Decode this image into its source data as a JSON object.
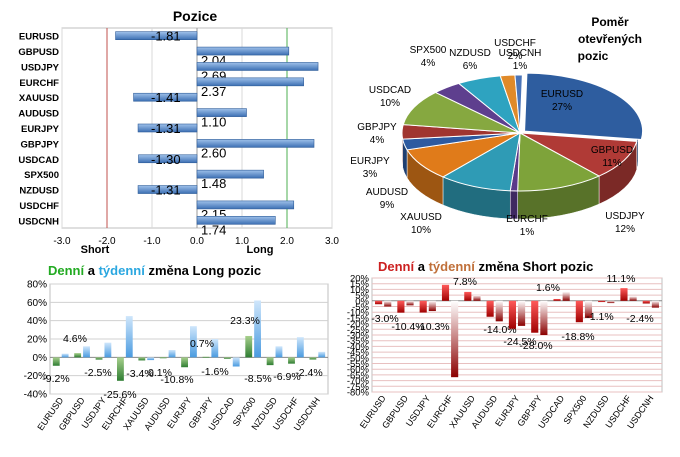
{
  "positions": {
    "title": "Pozice",
    "short_label": "Short",
    "long_label": "Long",
    "xlim": [
      -3,
      3
    ],
    "ticks": [
      "-3.0",
      "-2.0",
      "-1.0",
      "0.0",
      "1.0",
      "2.0",
      "3.0"
    ],
    "tick_values": [
      -3,
      -2,
      -1,
      0,
      1,
      2,
      3
    ]
  },
  "pie": {
    "title_lines": [
      "Poměr",
      "otevřených",
      "pozic"
    ]
  },
  "long_change": {
    "title_parts": [
      "Denní",
      " a ",
      "týdenní",
      " změna Long pozic"
    ],
    "ticks": [
      "80%",
      "60%",
      "40%",
      "20%",
      "0%",
      "-20%",
      "-40%"
    ],
    "tick_values": [
      80,
      60,
      40,
      20,
      0,
      -20,
      -40
    ],
    "label_texts": [
      "-9.2%",
      "4.6%",
      "-2.5%",
      "-25.6%",
      "-3.4%",
      "0.1%",
      "-10.8%",
      "0.7%",
      "-1.6%",
      "23.3%",
      "-8.5%",
      "-6.9%",
      "-2.4%"
    ]
  },
  "short_change": {
    "title_parts": [
      "Denní",
      " a ",
      "týdenní",
      " změna Short pozic"
    ],
    "ticks": [
      "20%",
      "15%",
      "10%",
      "5%",
      "0%",
      "-5%",
      "-10%",
      "-15%",
      "-20%",
      "-25%",
      "-30%",
      "-35%",
      "-40%",
      "-45%",
      "-50%",
      "-55%",
      "-60%",
      "-65%",
      "-70%",
      "-75%",
      "-80%"
    ],
    "tick_values": [
      20,
      15,
      10,
      5,
      0,
      -5,
      -10,
      -15,
      -20,
      -25,
      -30,
      -35,
      -40,
      -45,
      -50,
      -55,
      -60,
      -65,
      -70,
      -75,
      -80
    ],
    "label_texts": [
      "-3.0%",
      "-10.4%",
      "-10.3%",
      "7.8%",
      "-14.0%",
      "-24.5%",
      "-28.0%",
      "1.6%",
      "-18.8%",
      "-1.1%",
      "11.1%",
      "-2.4%"
    ]
  },
  "colors": {
    "positions_bar": "#5b8fd4",
    "short_line": "#c0504d",
    "long_line": "#4caf50",
    "grid": "#c8c8c8",
    "green_title": "#22aa22",
    "blue_title": "#2aa7e0",
    "red_title": "#cc2020",
    "brown_title": "#c0703a",
    "long_daily": "#2e8b2e",
    "long_weekly": "#6fb0f0",
    "short_daily": "#b00000",
    "short_weekly": "#d06060"
  },
  "chart_data": [
    {
      "type": "bar",
      "title": "Pozice",
      "orientation": "horizontal",
      "categories": [
        "EURUSD",
        "GBPUSD",
        "USDJPY",
        "EURCHF",
        "XAUUSD",
        "AUDUSD",
        "EURJPY",
        "GBPJPY",
        "USDCAD",
        "SPX500",
        "NZDUSD",
        "USDCHF",
        "USDCNH"
      ],
      "values": [
        -1.81,
        2.04,
        2.69,
        2.37,
        -1.41,
        1.1,
        -1.31,
        2.6,
        -1.3,
        1.48,
        -1.31,
        2.15,
        1.74
      ],
      "xlim": [
        -3,
        3
      ],
      "xlabel": "",
      "ylabel": ""
    },
    {
      "type": "pie",
      "title": "Poměr otevřených pozic",
      "categories": [
        "EURUSD",
        "GBPUSD",
        "USDJPY",
        "EURCHF",
        "XAUUSD",
        "AUDUSD",
        "EURJPY",
        "GBPJPY",
        "USDCAD",
        "SPX500",
        "NZDUSD",
        "USDCHF",
        "USDCNH"
      ],
      "values": [
        27,
        11,
        12,
        1,
        10,
        9,
        3,
        4,
        10,
        4,
        6,
        2,
        1
      ],
      "colors": [
        "#2e5d9f",
        "#b03a36",
        "#7ea33a",
        "#5a3a8a",
        "#2f9bb5",
        "#e07b1a",
        "#2d5aa0",
        "#a03530",
        "#86a840",
        "#5e3f8e",
        "#2ea3c0",
        "#e08a2a",
        "#4a74b8"
      ]
    },
    {
      "type": "bar",
      "title": "Denní a týdenní změna Long pozic",
      "categories": [
        "EURUSD",
        "GBPUSD",
        "USDJPY",
        "EURCHF",
        "XAUUSD",
        "AUDUSD",
        "EURJPY",
        "GBPJPY",
        "USDCAD",
        "SPX500",
        "NZDUSD",
        "USDCHF",
        "USDCNH"
      ],
      "series": [
        {
          "name": "Denní",
          "values": [
            -9.2,
            4.6,
            -2.5,
            -25.6,
            -3.4,
            0.1,
            -10.8,
            0.7,
            -1.6,
            23.3,
            -8.5,
            -6.9,
            -2.4
          ]
        },
        {
          "name": "Týdenní",
          "values": [
            4,
            12,
            16,
            45,
            -3,
            8,
            34,
            20,
            -10,
            62,
            12,
            22,
            6
          ]
        }
      ],
      "ylim": [
        -40,
        80
      ]
    },
    {
      "type": "bar",
      "title": "Denní a týdenní změna Short pozic",
      "categories": [
        "EURUSD",
        "GBPUSD",
        "USDJPY",
        "EURCHF",
        "XAUUSD",
        "AUDUSD",
        "EURJPY",
        "GBPJPY",
        "USDCAD",
        "SPX500",
        "NZDUSD",
        "USDCHF",
        "USDCNH"
      ],
      "series": [
        {
          "name": "Denní",
          "values": [
            -3.0,
            -10.4,
            -10.3,
            14,
            7.8,
            -14.0,
            -24.5,
            -28.0,
            1.6,
            -18.8,
            -1.1,
            11.1,
            -2.4
          ]
        },
        {
          "name": "Týdenní",
          "values": [
            -5,
            -4,
            -9,
            -67,
            5,
            -18,
            -22,
            -30,
            8,
            -15,
            -2,
            4,
            -6
          ]
        }
      ],
      "ylim": [
        -80,
        20
      ]
    }
  ]
}
